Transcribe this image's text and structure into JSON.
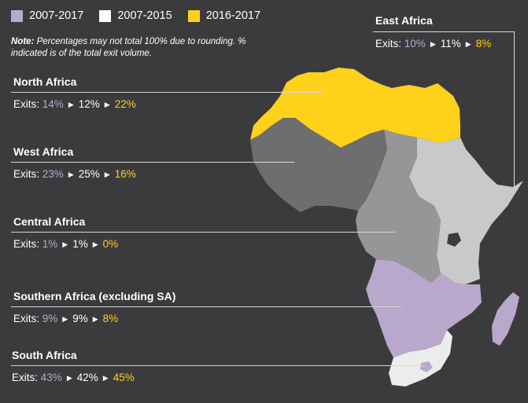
{
  "legend": [
    {
      "label": "2007-2017",
      "color": "#b9a8cc"
    },
    {
      "label": "2007-2015",
      "color": "#ffffff"
    },
    {
      "label": "2016-2017",
      "color": "#ffd11a"
    }
  ],
  "note": {
    "bold": "Note:",
    "text": " Percentages may not total 100% due to rounding. % indicated is of the total exit volume."
  },
  "exits_label": "Exits:",
  "regions": {
    "east": {
      "name": "East Africa",
      "v1": "10%",
      "v2": "11%",
      "v3": "8%"
    },
    "north": {
      "name": "North Africa",
      "v1": "14%",
      "v2": "12%",
      "v3": "22%"
    },
    "west": {
      "name": "West Africa",
      "v1": "23%",
      "v2": "25%",
      "v3": "16%"
    },
    "central": {
      "name": "Central Africa",
      "v1": "1%",
      "v2": "1%",
      "v3": "0%"
    },
    "southern": {
      "name": "Southern Africa (excluding SA)",
      "v1": "9%",
      "v2": "9%",
      "v3": "8%"
    },
    "south": {
      "name": "South Africa",
      "v1": "43%",
      "v2": "42%",
      "v3": "45%"
    }
  },
  "map_colors": {
    "north": "#ffd11a",
    "west": "#6e6e70",
    "central": "#969698",
    "east": "#c9c9cb",
    "southern": "#b9a8cc",
    "south": "#ececec",
    "lake": "#3b3b3d"
  }
}
